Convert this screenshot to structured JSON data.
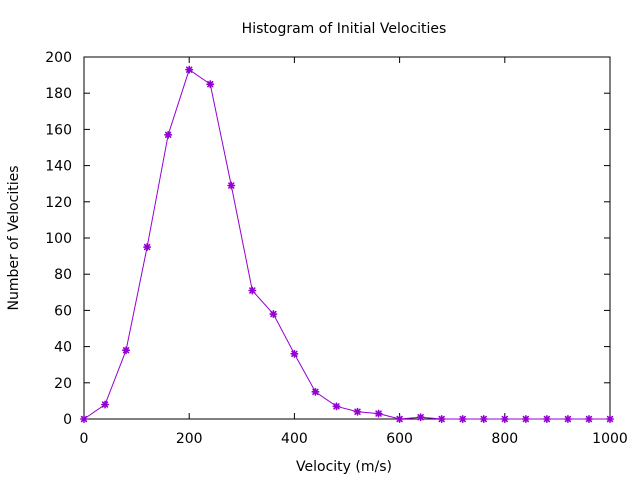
{
  "chart_data": {
    "type": "line",
    "title": "Histogram of Initial Velocities",
    "xlabel": "Velocity (m/s)",
    "ylabel": "Number of Velocities",
    "xlim": [
      0,
      1000
    ],
    "ylim": [
      0,
      200
    ],
    "xticks": [
      0,
      200,
      400,
      600,
      800,
      1000
    ],
    "yticks": [
      0,
      20,
      40,
      60,
      80,
      100,
      120,
      140,
      160,
      180,
      200
    ],
    "grid": false,
    "legend": "none",
    "series": [
      {
        "color": "#9400d3",
        "marker": "asterisk",
        "x": [
          0,
          40,
          80,
          120,
          160,
          200,
          240,
          280,
          320,
          360,
          400,
          440,
          480,
          520,
          560,
          600,
          640,
          680,
          720,
          760,
          800,
          840,
          880,
          920,
          960,
          1000
        ],
        "y": [
          0,
          8,
          38,
          95,
          157,
          193,
          185,
          129,
          71,
          58,
          36,
          15,
          7,
          4,
          3,
          0,
          1,
          0,
          0,
          0,
          0,
          0,
          0,
          0,
          0,
          0
        ]
      }
    ]
  }
}
